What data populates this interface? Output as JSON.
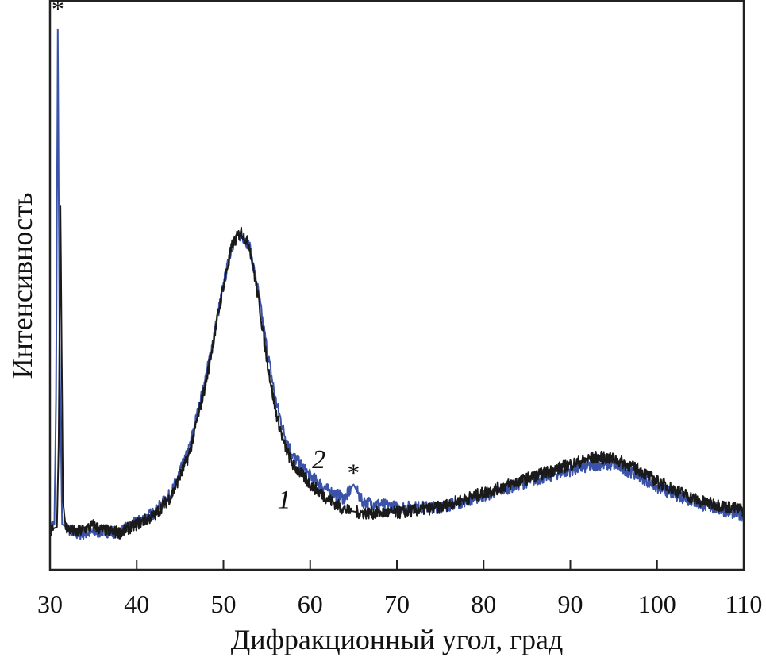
{
  "chart_data": {
    "type": "line",
    "title": "",
    "xlabel": "Дифракционный угол, град",
    "ylabel": "Интенсивность",
    "xlim": [
      30,
      110
    ],
    "ylim": [
      0,
      100
    ],
    "y_units": "arbitrary",
    "xticks": [
      "30",
      "40",
      "50",
      "60",
      "70",
      "80",
      "90",
      "100",
      "110"
    ],
    "yticks": [],
    "grid": false,
    "legend": "none",
    "series": [
      {
        "name": "1",
        "color": "#1a1a1a",
        "points": [
          [
            30,
            7
          ],
          [
            30.8,
            7.5
          ],
          [
            31.0,
            22
          ],
          [
            31.2,
            64
          ],
          [
            31.5,
            12
          ],
          [
            31.8,
            7.5
          ],
          [
            33,
            6.5
          ],
          [
            35,
            7.8
          ],
          [
            36,
            7
          ],
          [
            38,
            6.5
          ],
          [
            40,
            8
          ],
          [
            42,
            9.5
          ],
          [
            44,
            13
          ],
          [
            46,
            20
          ],
          [
            48,
            33
          ],
          [
            50,
            50
          ],
          [
            51,
            57
          ],
          [
            52,
            59.5
          ],
          [
            53,
            57
          ],
          [
            54,
            48
          ],
          [
            55,
            37
          ],
          [
            56,
            28
          ],
          [
            57,
            22
          ],
          [
            58,
            18.5
          ],
          [
            60,
            15
          ],
          [
            62,
            12.5
          ],
          [
            64,
            10.5
          ],
          [
            66,
            10
          ],
          [
            70,
            10
          ],
          [
            75,
            11
          ],
          [
            80,
            13.5
          ],
          [
            85,
            16
          ],
          [
            90,
            18.5
          ],
          [
            93,
            19.8
          ],
          [
            95,
            19.5
          ],
          [
            98,
            17.5
          ],
          [
            100,
            15.5
          ],
          [
            105,
            12
          ],
          [
            110,
            10.5
          ]
        ]
      },
      {
        "name": "2",
        "color": "#3a52a8",
        "points": [
          [
            30,
            7.5
          ],
          [
            30.5,
            8
          ],
          [
            30.7,
            30
          ],
          [
            30.9,
            95
          ],
          [
            31.1,
            40
          ],
          [
            31.4,
            8
          ],
          [
            33,
            6.3
          ],
          [
            35,
            6.5
          ],
          [
            36,
            6.8
          ],
          [
            38,
            6.6
          ],
          [
            40,
            8.3
          ],
          [
            42,
            10
          ],
          [
            44,
            13.5
          ],
          [
            46,
            21
          ],
          [
            48,
            34
          ],
          [
            50,
            50
          ],
          [
            51,
            57
          ],
          [
            52,
            59
          ],
          [
            53,
            57
          ],
          [
            54,
            49
          ],
          [
            55,
            39
          ],
          [
            56,
            30
          ],
          [
            57,
            24
          ],
          [
            58,
            20
          ],
          [
            60,
            16.5
          ],
          [
            62,
            14
          ],
          [
            64,
            12.5
          ],
          [
            65,
            15
          ],
          [
            66,
            12
          ],
          [
            70,
            11
          ],
          [
            75,
            11
          ],
          [
            80,
            13
          ],
          [
            85,
            15.5
          ],
          [
            90,
            17.5
          ],
          [
            93,
            18.5
          ],
          [
            95,
            18.5
          ],
          [
            98,
            16.5
          ],
          [
            100,
            14.5
          ],
          [
            105,
            11.5
          ],
          [
            110,
            9.5
          ]
        ]
      }
    ],
    "annotations": [
      {
        "text": "*",
        "x": 30.9,
        "y": 99
      },
      {
        "text": "*",
        "x": 65,
        "y": 17.5
      },
      {
        "text": "1",
        "x": 57,
        "y": 12.5
      },
      {
        "text": "2",
        "x": 61,
        "y": 19.5
      }
    ]
  }
}
